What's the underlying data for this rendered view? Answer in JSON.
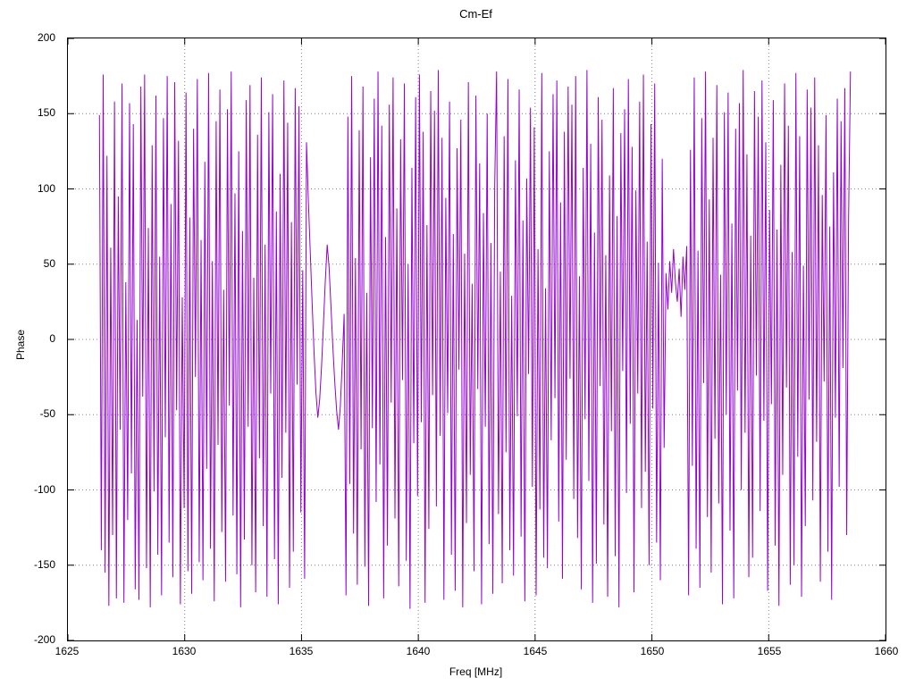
{
  "chart_data": {
    "type": "line",
    "title": "Cm-Ef",
    "xlabel": "Freq [MHz]",
    "ylabel": "Phase",
    "xlim": [
      1625,
      1660
    ],
    "ylim": [
      -200,
      200
    ],
    "x_ticks": [
      1625,
      1630,
      1635,
      1640,
      1645,
      1650,
      1655,
      1660
    ],
    "y_ticks": [
      -200,
      -150,
      -100,
      -50,
      0,
      50,
      100,
      150,
      200
    ],
    "grid": true,
    "legend": "none",
    "series": [
      {
        "name": "Cm-Ef phase",
        "color": "#9400d3",
        "x_start": 1626.35,
        "x_end": 1658.5,
        "values": [
          149,
          -140,
          176,
          -155,
          122,
          -177,
          61,
          -130,
          158,
          -172,
          95,
          -60,
          170,
          -175,
          38,
          -120,
          157,
          -89,
          143,
          -166,
          13,
          -173,
          168,
          -38,
          176,
          -152,
          74,
          -178,
          129,
          -101,
          162,
          -143,
          55,
          -170,
          147,
          -65,
          175,
          -135,
          90,
          -158,
          171,
          -47,
          132,
          -176,
          28,
          -112,
          164,
          -154,
          81,
          -169,
          140,
          -25,
          173,
          -148,
          66,
          -160,
          118,
          -86,
          177,
          -139,
          52,
          -174,
          145,
          -70,
          166,
          -128,
          33,
          -161,
          153,
          -44,
          178,
          -117,
          97,
          -156,
          125,
          -178,
          72,
          -133,
          159,
          -58,
          169,
          -150,
          41,
          -168,
          136,
          -79,
          174,
          -124,
          63,
          -171,
          151,
          -36,
          163,
          -146,
          85,
          -176,
          110,
          -92,
          172,
          -62,
          144,
          -165,
          78,
          -141,
          167,
          -30,
          155,
          -115,
          46,
          -159,
          131,
          92,
          58,
          24,
          -8,
          -35,
          -52,
          -40,
          -18,
          10,
          39,
          63,
          48,
          22,
          -5,
          -28,
          -47,
          -60,
          -44,
          -15,
          17,
          -170,
          148,
          -96,
          175,
          -129,
          54,
          -163,
          139,
          -73,
          168,
          -151,
          31,
          -177,
          121,
          -59,
          160,
          -108,
          178,
          -83,
          142,
          -172,
          68,
          -137,
          156,
          -42,
          174,
          -119,
          87,
          -164,
          133,
          -27,
          170,
          -147,
          50,
          -179,
          114,
          -69,
          161,
          -104,
          176,
          -55,
          138,
          -175,
          76,
          -126,
          165,
          -37,
          152,
          -111,
          179,
          -64,
          134,
          -173,
          94,
          -49,
          158,
          -143,
          70,
          -167,
          127,
          -20,
          146,
          -178,
          57,
          -122,
          171,
          -90,
          37,
          -154,
          162,
          -33,
          117,
          -176,
          84,
          -58,
          150,
          -136,
          64,
          -169,
          103,
          178,
          -116,
          45,
          -162,
          135,
          -75,
          173,
          -140,
          29,
          -157,
          119,
          -51,
          166,
          -131,
          79,
          -174,
          107,
          -23,
          154,
          -98,
          141,
          -170,
          60,
          -113,
          177,
          -145,
          34,
          -152,
          125,
          -67,
          163,
          -39,
          172,
          -121,
          91,
          -159,
          138,
          -80,
          168,
          -26,
          156,
          -106,
          175,
          -132,
          42,
          -166,
          114,
          -53,
          179,
          -94,
          130,
          -175,
          71,
          -149,
          161,
          -31,
          146,
          -123,
          56,
          -171,
          109,
          -61,
          167,
          -144,
          82,
          -178,
          137,
          -21,
          153,
          -102,
          173,
          -56,
          128,
          -168,
          99,
          -36,
          158,
          -112,
          176,
          -88,
          65,
          -150,
          143,
          -46,
          170,
          -135,
          51,
          -160,
          120,
          -72,
          44,
          20,
          52,
          31,
          60,
          38,
          25,
          47,
          15,
          55,
          33,
          62,
          -170,
          126,
          -84,
          174,
          -139,
          59,
          -165,
          147,
          -29,
          178,
          -118,
          93,
          -155,
          134,
          -66,
          169,
          -109,
          43,
          -176,
          151,
          -50,
          164,
          -127,
          77,
          -172,
          140,
          -34,
          157,
          -100,
          179,
          -62,
          123,
          -158,
          69,
          -145,
          165,
          -24,
          148,
          -114,
          172,
          -54,
          131,
          -167,
          86,
          -43,
          159,
          -137,
          73,
          -177,
          116,
          -90,
          170,
          -32,
          142,
          -163,
          58,
          -150,
          177,
          -78,
          135,
          -171,
          49,
          -124,
          166,
          -40,
          154,
          -107,
          174,
          -68,
          129,
          -161,
          96,
          -28,
          149,
          -141,
          75,
          -173,
          111,
          -52,
          160,
          -98,
          145,
          -19,
          167,
          -130,
          81,
          178
        ]
      }
    ]
  }
}
